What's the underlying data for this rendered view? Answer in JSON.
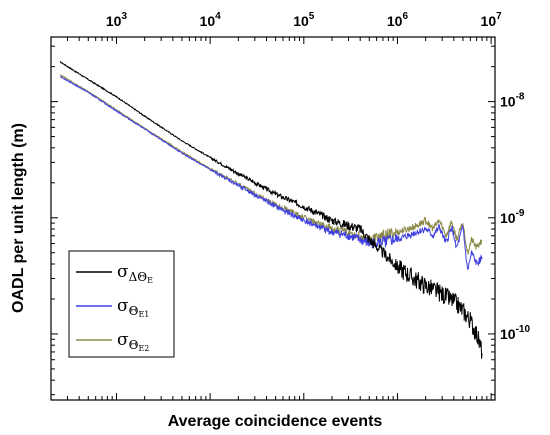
{
  "chart_data": {
    "type": "line",
    "xlabel": "Average coincidence events",
    "ylabel": "OADL per unit length (m)",
    "xscale": "log",
    "yscale": "log",
    "xaxis_position": "top",
    "yaxis_position": "right",
    "xlim": [
      200,
      11000000
    ],
    "ylim": [
      2.7e-11,
      3.6e-08
    ],
    "xticks": [
      {
        "value": 1000,
        "base": "10",
        "exp": "3"
      },
      {
        "value": 10000,
        "base": "10",
        "exp": "4"
      },
      {
        "value": 100000,
        "base": "10",
        "exp": "5"
      },
      {
        "value": 1000000,
        "base": "10",
        "exp": "6"
      },
      {
        "value": 10000000,
        "base": "10",
        "exp": "7"
      }
    ],
    "yticks": [
      {
        "value": 1e-08,
        "base": "10",
        "exp": "-8"
      },
      {
        "value": 1e-09,
        "base": "10",
        "exp": "-9"
      },
      {
        "value": 1e-10,
        "base": "10",
        "exp": "-10"
      }
    ],
    "grid": false,
    "legend_position": "bottom-left",
    "series": [
      {
        "name": "ΔΘE",
        "symbol": "σ",
        "subscript_text": "ΔΘ",
        "subscript_sub": "E",
        "color": "#000000",
        "x": [
          250,
          500,
          1000,
          2000,
          5000,
          10000,
          20000,
          50000,
          100000,
          200000,
          400000,
          500000,
          700000,
          1000000,
          1500000,
          2000000,
          3000000,
          4000000,
          5000000,
          6000000,
          7000000,
          8000000
        ],
        "y": [
          2.2e-08,
          1.55e-08,
          1.1e-08,
          7.5e-09,
          4.6e-09,
          3.3e-09,
          2.4e-09,
          1.6e-09,
          1.25e-09,
          9.5e-10,
          8e-10,
          6.5e-10,
          5e-10,
          3.8e-10,
          3e-10,
          2.6e-10,
          2.2e-10,
          1.9e-10,
          1.6e-10,
          1.3e-10,
          1e-10,
          7e-11
        ]
      },
      {
        "name": "ΘE1",
        "symbol": "σ",
        "subscript_text": "Θ",
        "subscript_sub": "E1",
        "color": "#4040e0",
        "x": [
          250,
          500,
          1000,
          2000,
          5000,
          10000,
          20000,
          50000,
          100000,
          200000,
          300000,
          500000,
          700000,
          1000000,
          1300000,
          1600000,
          2000000,
          2400000,
          2800000,
          3300000,
          3800000,
          4300000,
          5000000,
          5600000,
          6200000,
          7000000,
          8000000
        ],
        "y": [
          1.65e-08,
          1.2e-08,
          8.3e-09,
          5.8e-09,
          3.6e-09,
          2.6e-09,
          1.9e-09,
          1.25e-09,
          9.5e-10,
          7.5e-10,
          7e-10,
          6e-10,
          6.2e-10,
          6.5e-10,
          7e-10,
          7.5e-10,
          8e-10,
          7e-10,
          8.3e-10,
          6e-10,
          8.3e-10,
          5.5e-10,
          8.3e-10,
          3.5e-10,
          5e-10,
          4e-10,
          4.5e-10
        ]
      },
      {
        "name": "ΘE2",
        "symbol": "σ",
        "subscript_text": "Θ",
        "subscript_sub": "E2",
        "color": "#8c8a4a",
        "x": [
          250,
          500,
          1000,
          2000,
          5000,
          10000,
          20000,
          50000,
          100000,
          200000,
          300000,
          500000,
          700000,
          1000000,
          1300000,
          1600000,
          2000000,
          2400000,
          2800000,
          3300000,
          3800000,
          4300000,
          5000000,
          5600000,
          6200000,
          7000000,
          8000000
        ],
        "y": [
          1.7e-08,
          1.22e-08,
          8.5e-09,
          5.9e-09,
          3.7e-09,
          2.65e-09,
          1.95e-09,
          1.3e-09,
          1e-09,
          8e-10,
          7.5e-10,
          6.5e-10,
          7e-10,
          7.5e-10,
          8e-10,
          8.5e-10,
          9.5e-10,
          8e-10,
          9.5e-10,
          7e-10,
          9.3e-10,
          6.5e-10,
          9e-10,
          5e-10,
          6.5e-10,
          5.5e-10,
          6.5e-10
        ]
      }
    ]
  }
}
